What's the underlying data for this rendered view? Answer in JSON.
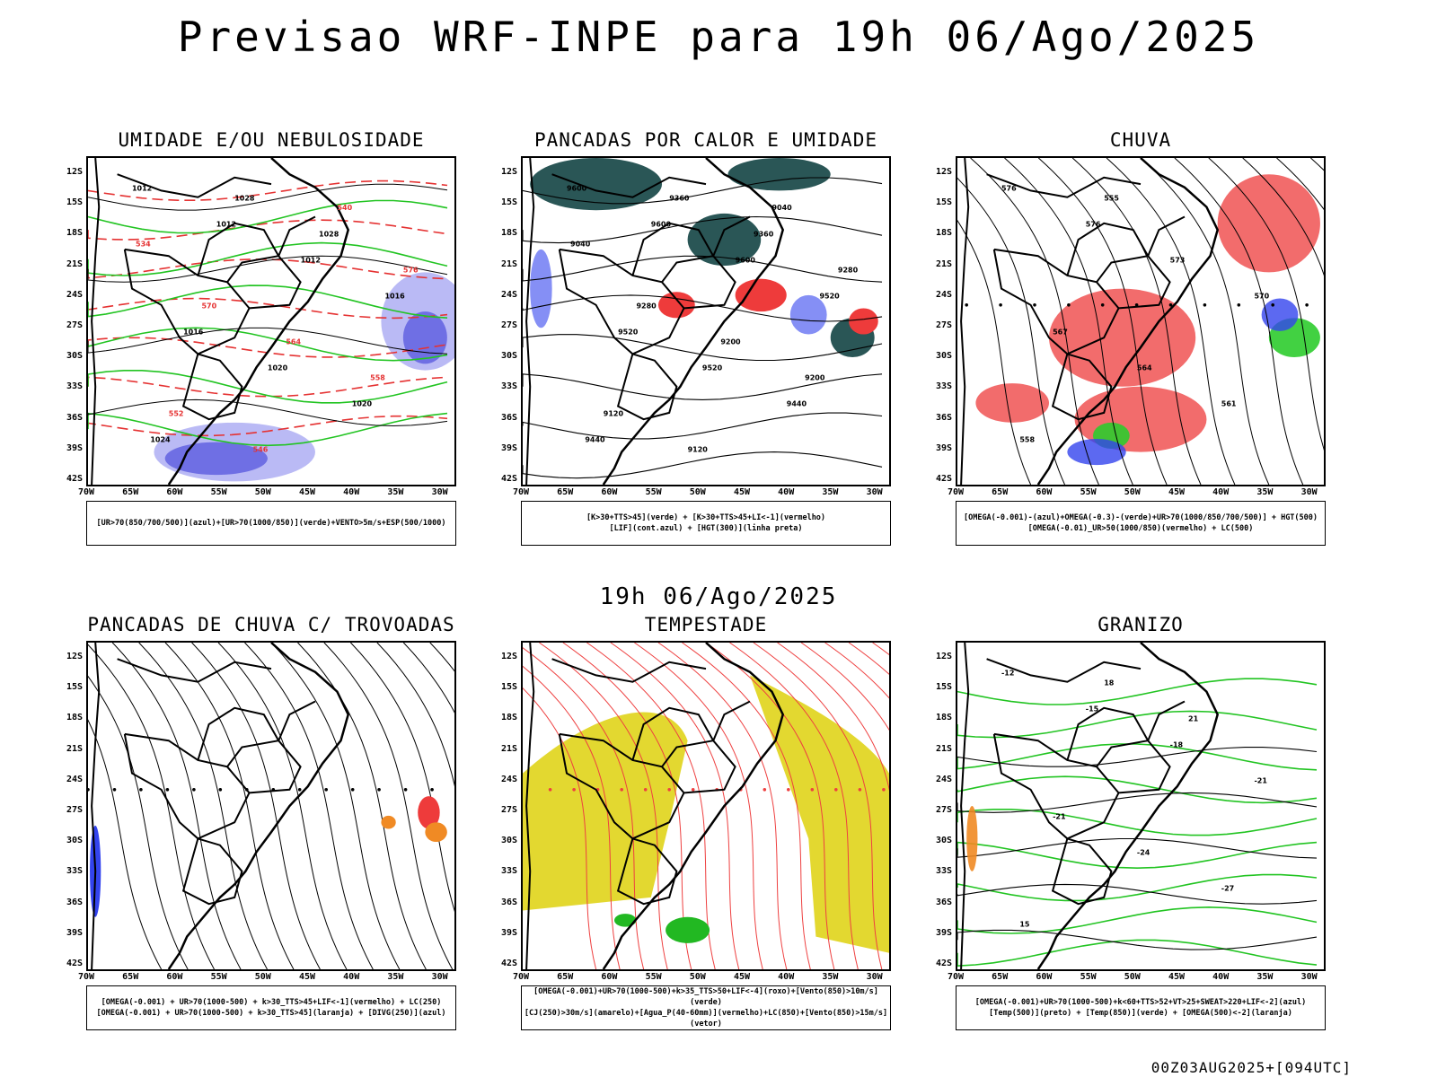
{
  "title": "Previsao WRF-INPE  para 19h 06/Ago/2025",
  "middle_label": "19h 06/Ago/2025",
  "footer": "00Z03AUG2025+[094UTC]",
  "lat_labels": [
    "12S",
    "15S",
    "18S",
    "21S",
    "24S",
    "27S",
    "30S",
    "33S",
    "36S",
    "39S",
    "42S"
  ],
  "lon_labels": [
    "70W",
    "65W",
    "60W",
    "55W",
    "50W",
    "45W",
    "40W",
    "35W",
    "30W"
  ],
  "panels": [
    {
      "title": "UMIDADE E/OU NEBULOSIDADE",
      "legend": [
        "[UR>70(850/700/500)](azul)+[UR>70(1000/850)](verde)+VENTO>5m/s+ESP(500/1000)"
      ],
      "labels": [
        "1012",
        "1012",
        "1012",
        "1016",
        "1016",
        "1020",
        "1020",
        "1024",
        "1028",
        "1028",
        "576",
        "570",
        "564",
        "558",
        "552",
        "546",
        "540",
        "534"
      ]
    },
    {
      "title": "PANCADAS POR CALOR E UMIDADE",
      "legend": [
        "[K>30+TTS>45](verde) + [K>30+TTS>45+LI<-1](vermelho)",
        "[LIF](cont.azul) + [HGT(300)](linha preta)"
      ],
      "labels": [
        "9600",
        "9600",
        "9600",
        "9520",
        "9520",
        "9520",
        "9440",
        "9440",
        "9360",
        "9360",
        "9280",
        "9280",
        "9200",
        "9200",
        "9120",
        "9120",
        "9040",
        "9040"
      ]
    },
    {
      "title": "CHUVA",
      "legend": [
        "[OMEGA(-0.001)-(azul)+OMEGA(-0.3)-(verde)+UR>70(1000/850/700/500)] + HGT(500)",
        "[OMEGA(-0.01)_UR>50(1000/850)(vermelho) + LC(500)"
      ],
      "labels": [
        "576",
        "576",
        "573",
        "570",
        "567",
        "564",
        "561",
        "558",
        "555"
      ]
    },
    {
      "title": "PANCADAS DE CHUVA C/ TROVOADAS",
      "legend": [
        "[OMEGA(-0.001) + UR>70(1000-500) + k>30_TTS>45+LIF<-1](vermelho) + LC(250)",
        "[OMEGA(-0.001) + UR>70(1000-500) + k>30_TTS>45](laranja) + [DIVG(250)](azul)"
      ],
      "labels": []
    },
    {
      "title": "TEMPESTADE",
      "legend": [
        "[OMEGA(-0.001)+UR>70(1000-500)+k>35_TTS>50+LIF<-4](roxo)+[Vento(850)>10m/s](verde)",
        "[CJ(250)>30m/s](amarelo)+[Agua_P(40-60mm)](vermelho)+LC(850)+[Vento(850)>15m/s](vetor)"
      ],
      "labels": []
    },
    {
      "title": "GRANIZO",
      "legend": [
        "[OMEGA(-0.001)+UR>70(1000-500)+k<60+TTS>52+VT>25+SWEAT>220+LIF<-2](azul)",
        "[Temp(500)](preto) + [Temp(850)](verde) + [OMEGA(500)<-2](laranja)"
      ],
      "labels": [
        "-12",
        "-15",
        "-18",
        "-21",
        "-21",
        "-24",
        "-27",
        "15",
        "18",
        "21"
      ]
    }
  ]
}
